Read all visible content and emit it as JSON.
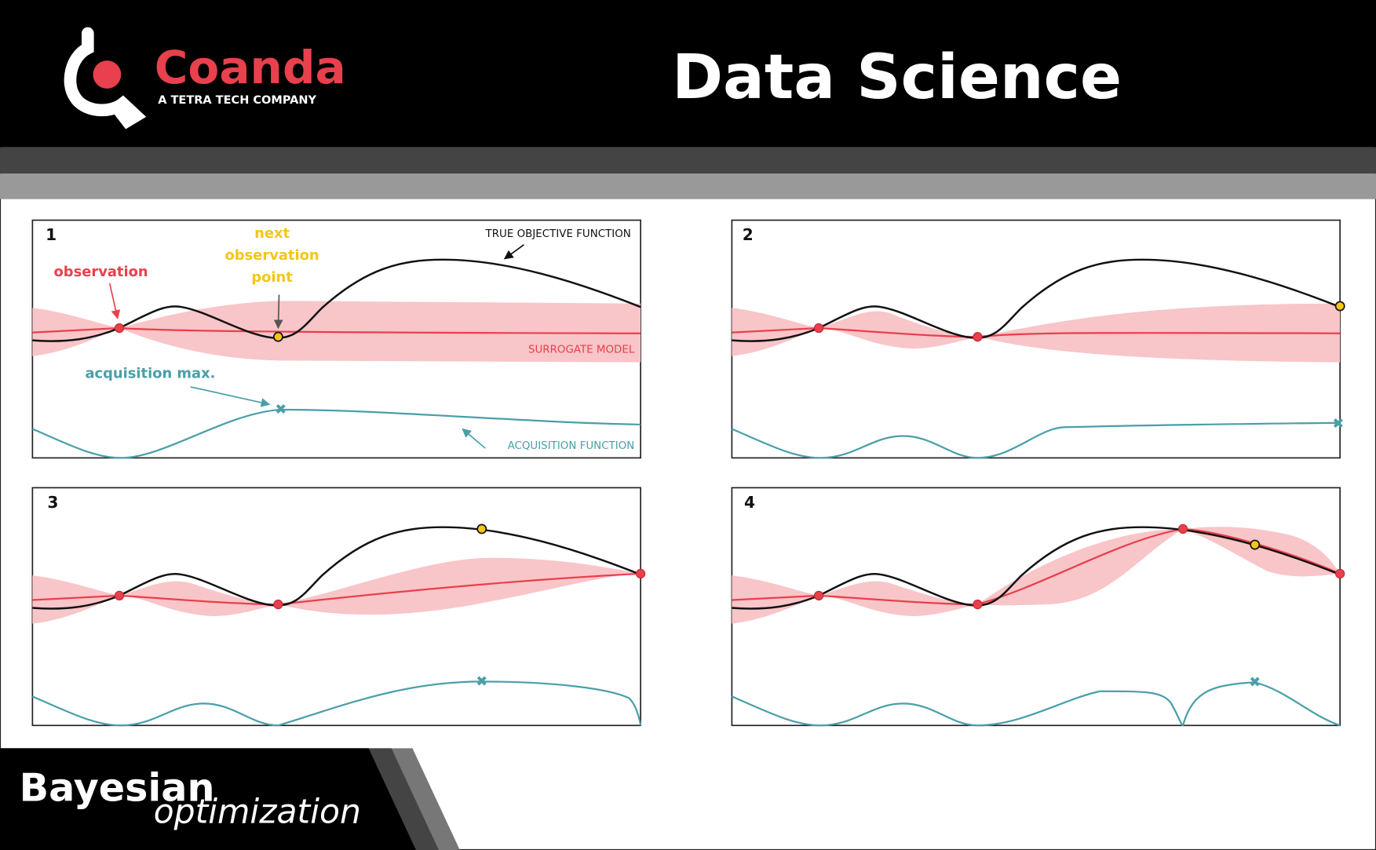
{
  "header": {
    "brand": "Coanda",
    "tagline": "A TETRA TECH COMPANY",
    "title": "Data Science"
  },
  "panels": [
    {
      "label": "1"
    },
    {
      "label": "2"
    },
    {
      "label": "3"
    },
    {
      "label": "4"
    }
  ],
  "annotations": {
    "observation": "observation",
    "next_point": [
      "next",
      "observation",
      "point"
    ],
    "true_objective": "TRUE OBJECTIVE FUNCTION",
    "surrogate": "SURROGATE MODEL",
    "acquisition_max": "acquisition max.",
    "acquisition_function": "ACQUISITION FUNCTION"
  },
  "footer": {
    "title": "Bayesian",
    "subtitle": "optimization"
  }
}
